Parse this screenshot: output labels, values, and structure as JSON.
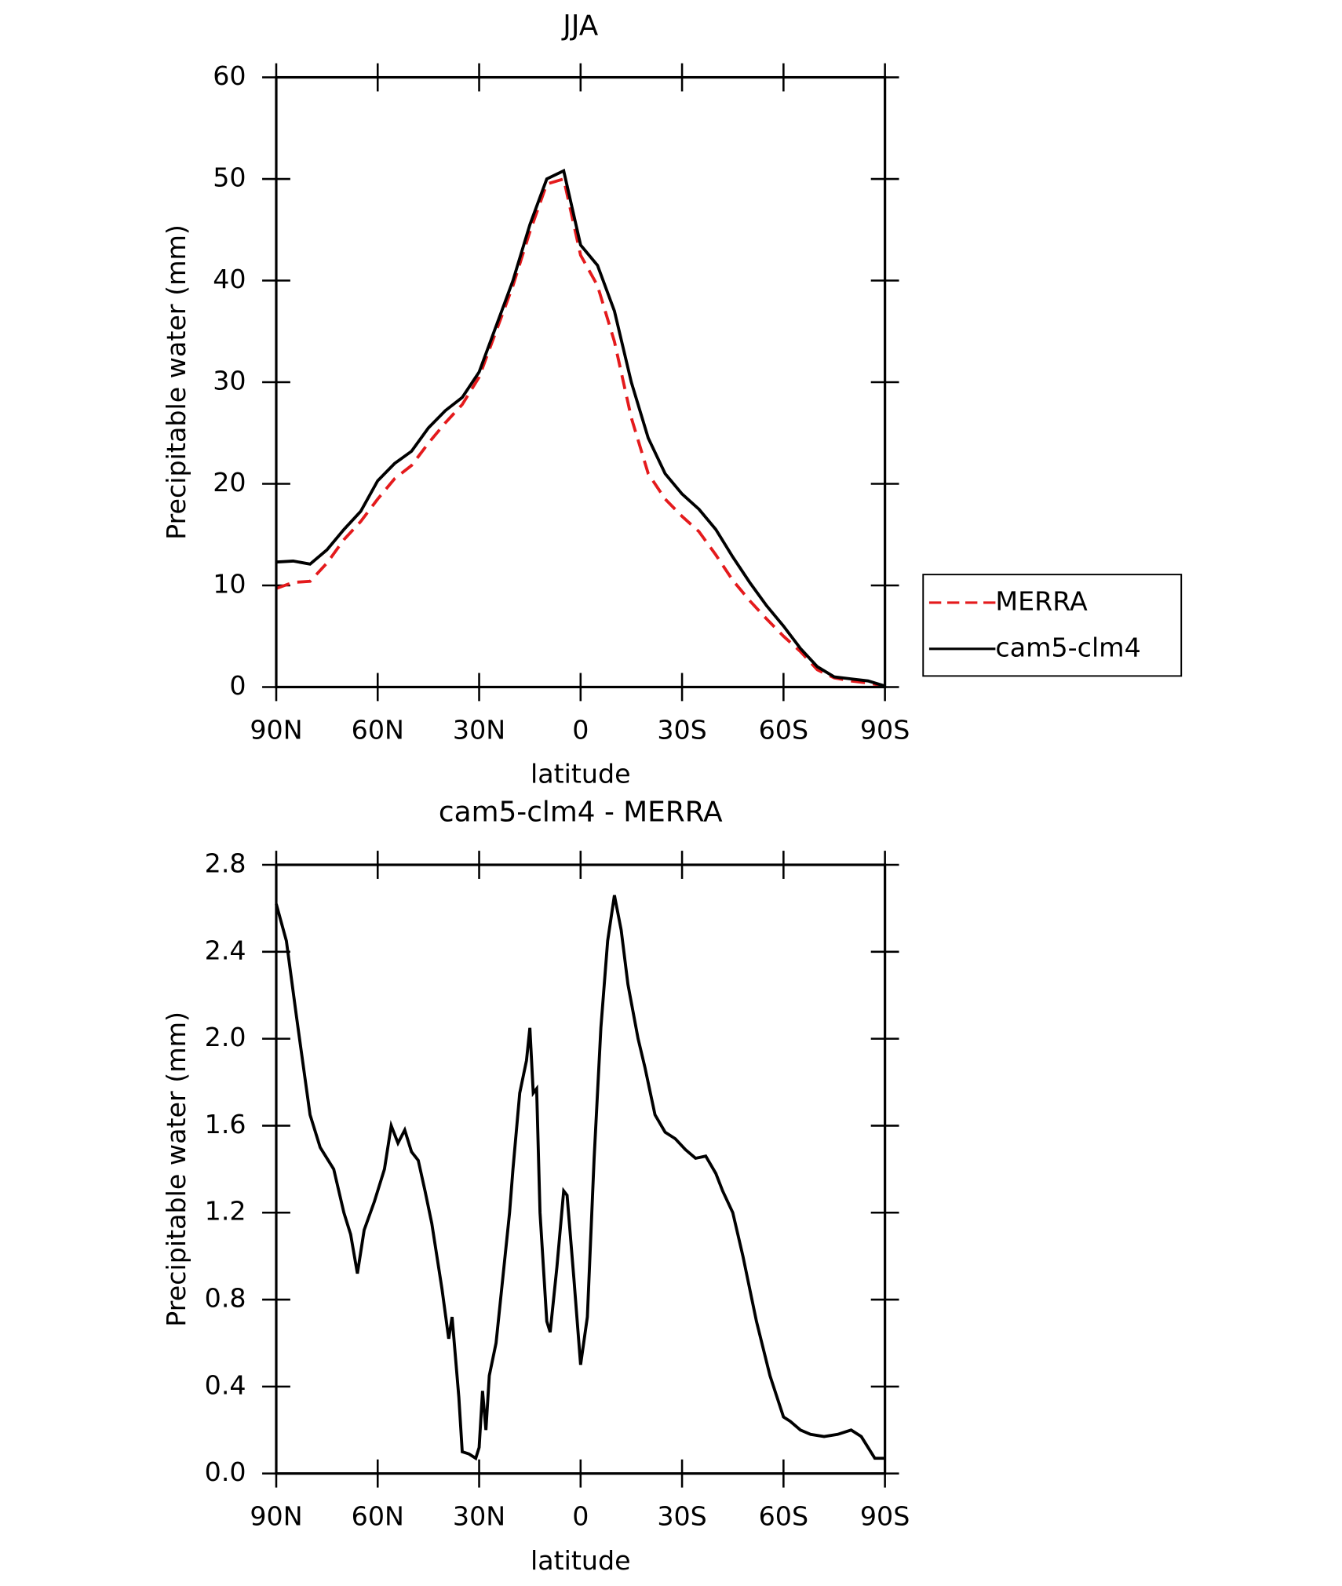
{
  "chart_data": [
    {
      "type": "line",
      "title": "JJA",
      "x_label": "latitude",
      "y_label": "Precipitable water (mm)",
      "x": [
        90,
        85,
        80,
        75,
        70,
        65,
        60,
        55,
        50,
        45,
        40,
        35,
        30,
        25,
        20,
        15,
        10,
        5,
        0,
        -5,
        -10,
        -15,
        -20,
        -25,
        -30,
        -35,
        -40,
        -45,
        -50,
        -55,
        -60,
        -65,
        -70,
        -75,
        -80,
        -85,
        -90
      ],
      "series": [
        {
          "name": "MERRA",
          "color": "#e41a1c",
          "dashed": true,
          "values": [
            9.7,
            10.3,
            10.4,
            12.2,
            14.5,
            16.3,
            18.5,
            20.5,
            21.8,
            24,
            26,
            27.8,
            30.5,
            35,
            39.5,
            44.8,
            49.5,
            50,
            42.5,
            39.5,
            34,
            26.5,
            21,
            18.5,
            16.8,
            15.3,
            13,
            10.5,
            8.5,
            6.7,
            5,
            3.5,
            1.7,
            0.9,
            0.6,
            0.4,
            0.1
          ]
        },
        {
          "name": "cam5-clm4",
          "color": "#000000",
          "dashed": false,
          "values": [
            12.3,
            12.4,
            12.1,
            13.5,
            15.5,
            17.3,
            20.3,
            22,
            23.2,
            25.5,
            27.2,
            28.5,
            31,
            35.5,
            40,
            45.5,
            50,
            50.8,
            43.5,
            41.5,
            37,
            30,
            24.5,
            21,
            19,
            17.5,
            15.5,
            12.8,
            10.3,
            8,
            6,
            3.8,
            2,
            1,
            0.8,
            0.6,
            0.1
          ]
        }
      ],
      "xlim": [
        90,
        -90
      ],
      "xticks": [
        {
          "value": 90,
          "label": "90N"
        },
        {
          "value": 60,
          "label": "60N"
        },
        {
          "value": 30,
          "label": "30N"
        },
        0,
        {
          "value": -30,
          "label": "30S"
        },
        {
          "value": -60,
          "label": "60S"
        },
        {
          "value": -90,
          "label": "90S"
        }
      ],
      "ylim": [
        0,
        60
      ],
      "yticks": [
        0,
        10,
        20,
        30,
        40,
        50,
        60
      ],
      "legend": "right"
    },
    {
      "type": "line",
      "title": "cam5-clm4 - MERRA",
      "x_label": "latitude",
      "y_label": "Precipitable water (mm)",
      "x": [
        90,
        87,
        84,
        80,
        77,
        73,
        70,
        68,
        66,
        64,
        61,
        58,
        56,
        54,
        52,
        50,
        48,
        46,
        44,
        41,
        39,
        38,
        36,
        35,
        33,
        31,
        30,
        29,
        28,
        27,
        25,
        23,
        21,
        20,
        18,
        16,
        15,
        14,
        13,
        12,
        10,
        9,
        7,
        5,
        4,
        2,
        0,
        -2,
        -4,
        -6,
        -8,
        -10,
        -12,
        -14,
        -17,
        -19,
        -22,
        -25,
        -28,
        -31,
        -34,
        -37,
        -40,
        -42,
        -45,
        -48,
        -52,
        -56,
        -60,
        -62,
        -65,
        -68,
        -72,
        -76,
        -80,
        -83,
        -87,
        -90
      ],
      "color": "#000000",
      "values": [
        2.62,
        2.45,
        2.1,
        1.65,
        1.5,
        1.4,
        1.2,
        1.1,
        0.92,
        1.12,
        1.25,
        1.4,
        1.6,
        1.52,
        1.58,
        1.48,
        1.44,
        1.3,
        1.15,
        0.85,
        0.62,
        0.72,
        0.35,
        0.1,
        0.09,
        0.07,
        0.12,
        0.38,
        0.2,
        0.45,
        0.6,
        0.9,
        1.2,
        1.4,
        1.75,
        1.9,
        2.05,
        1.75,
        1.77,
        1.2,
        0.7,
        0.65,
        0.95,
        1.3,
        1.28,
        0.9,
        0.5,
        0.72,
        1.45,
        2.05,
        2.45,
        2.66,
        2.5,
        2.25,
        2.0,
        1.87,
        1.65,
        1.57,
        1.54,
        1.49,
        1.45,
        1.46,
        1.38,
        1.3,
        1.2,
        1.0,
        0.7,
        0.45,
        0.26,
        0.24,
        0.2,
        0.18,
        0.17,
        0.18,
        0.2,
        0.17,
        0.07,
        0.07
      ],
      "xlim": [
        90,
        -90
      ],
      "xticks": [
        {
          "value": 90,
          "label": "90N"
        },
        {
          "value": 60,
          "label": "60N"
        },
        {
          "value": 30,
          "label": "30N"
        },
        0,
        {
          "value": -30,
          "label": "30S"
        },
        {
          "value": -60,
          "label": "60S"
        },
        {
          "value": -90,
          "label": "90S"
        }
      ],
      "ylim": [
        0,
        2.8
      ],
      "yticks": [
        {
          "value": 0,
          "label": "0.0"
        },
        0.4,
        0.8,
        1.2,
        1.6,
        {
          "value": 2,
          "label": "2.0"
        },
        2.4,
        2.8
      ]
    }
  ]
}
